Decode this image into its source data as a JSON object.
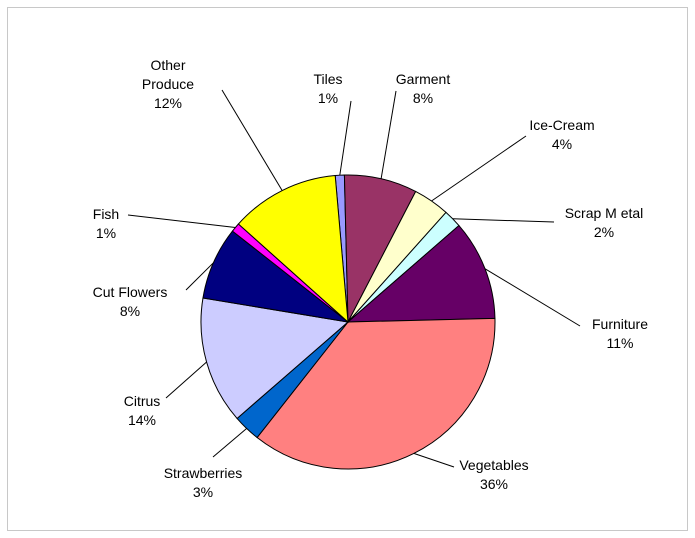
{
  "chart_data": {
    "type": "pie",
    "title": "",
    "slices": [
      {
        "label_lines": [
          "Tiles"
        ],
        "pct_label": "1%",
        "value": 1,
        "color": "#9999ff"
      },
      {
        "label_lines": [
          "Garment"
        ],
        "pct_label": "8%",
        "value": 8,
        "color": "#993366"
      },
      {
        "label_lines": [
          "Ice-Cream"
        ],
        "pct_label": "4%",
        "value": 4,
        "color": "#ffffcc"
      },
      {
        "label_lines": [
          "Scrap M etal"
        ],
        "pct_label": "2%",
        "value": 2,
        "color": "#ccffff"
      },
      {
        "label_lines": [
          "Furniture"
        ],
        "pct_label": "11%",
        "value": 11,
        "color": "#660066"
      },
      {
        "label_lines": [
          "Vegetables"
        ],
        "pct_label": "36%",
        "value": 36,
        "color": "#ff8080"
      },
      {
        "label_lines": [
          "Strawberries"
        ],
        "pct_label": "3%",
        "value": 3,
        "color": "#0066cc"
      },
      {
        "label_lines": [
          "Citrus"
        ],
        "pct_label": "14%",
        "value": 14,
        "color": "#ccccff"
      },
      {
        "label_lines": [
          "Cut Flowers"
        ],
        "pct_label": "8%",
        "value": 8,
        "color": "#000080"
      },
      {
        "label_lines": [
          "Fish"
        ],
        "pct_label": "1%",
        "value": 1,
        "color": "#ff00ff"
      },
      {
        "label_lines": [
          "Other",
          "Produce"
        ],
        "pct_label": "12%",
        "value": 12,
        "color": "#ffff00"
      }
    ]
  }
}
